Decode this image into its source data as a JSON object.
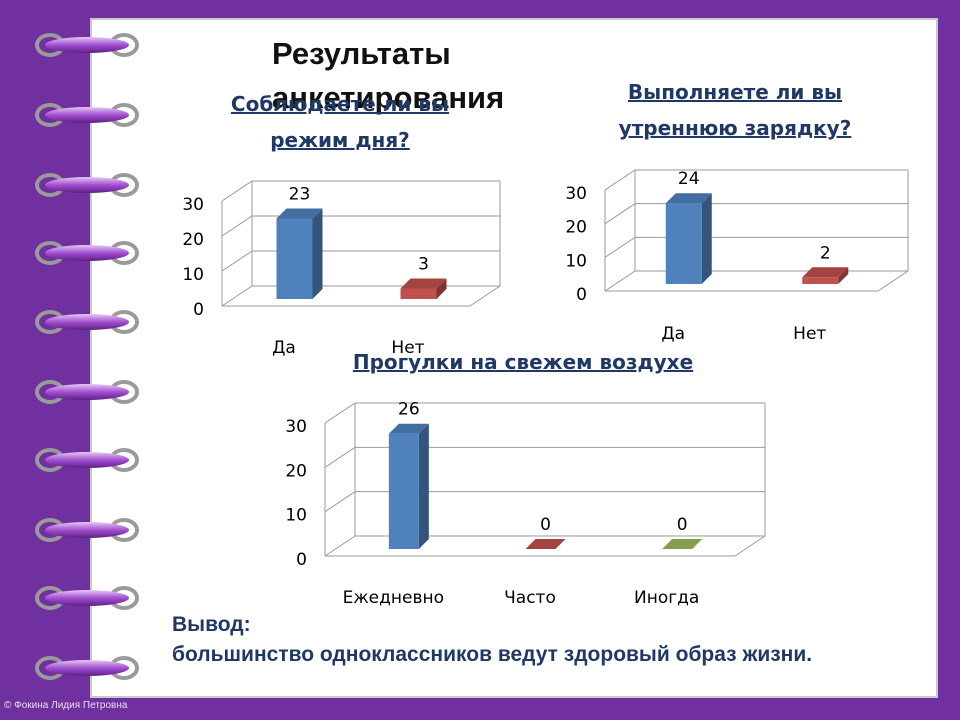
{
  "title": "Результаты анкетирования",
  "chart_data": [
    {
      "type": "bar",
      "title": "Соблюдаете ли вы режим дня?",
      "categories": [
        "Да",
        "Нет"
      ],
      "values": [
        23,
        3
      ],
      "colors": [
        "#4f81bd",
        "#c0504d"
      ],
      "ylim": [
        0,
        30
      ],
      "yticks": [
        0,
        10,
        20,
        30
      ],
      "grid": true
    },
    {
      "type": "bar",
      "title": "Выполняете ли вы утреннюю зарядку?",
      "categories": [
        "Да",
        "Нет"
      ],
      "values": [
        24,
        2
      ],
      "colors": [
        "#4f81bd",
        "#c0504d"
      ],
      "ylim": [
        0,
        30
      ],
      "yticks": [
        0,
        10,
        20,
        30
      ],
      "grid": true
    },
    {
      "type": "bar",
      "title": "Прогулки на свежем воздухе",
      "categories": [
        "Ежедневно",
        "Часто",
        "Иногда"
      ],
      "values": [
        26,
        0,
        0
      ],
      "colors": [
        "#4f81bd",
        "#c0504d",
        "#9bbb59"
      ],
      "ylim": [
        0,
        30
      ],
      "yticks": [
        0,
        10,
        20,
        30
      ],
      "grid": true
    }
  ],
  "conclusion": {
    "heading": "Вывод:",
    "text": "большинство одноклассников ведут здоровый образ жизни."
  },
  "footer": "© Фокина Лидия Петровна"
}
